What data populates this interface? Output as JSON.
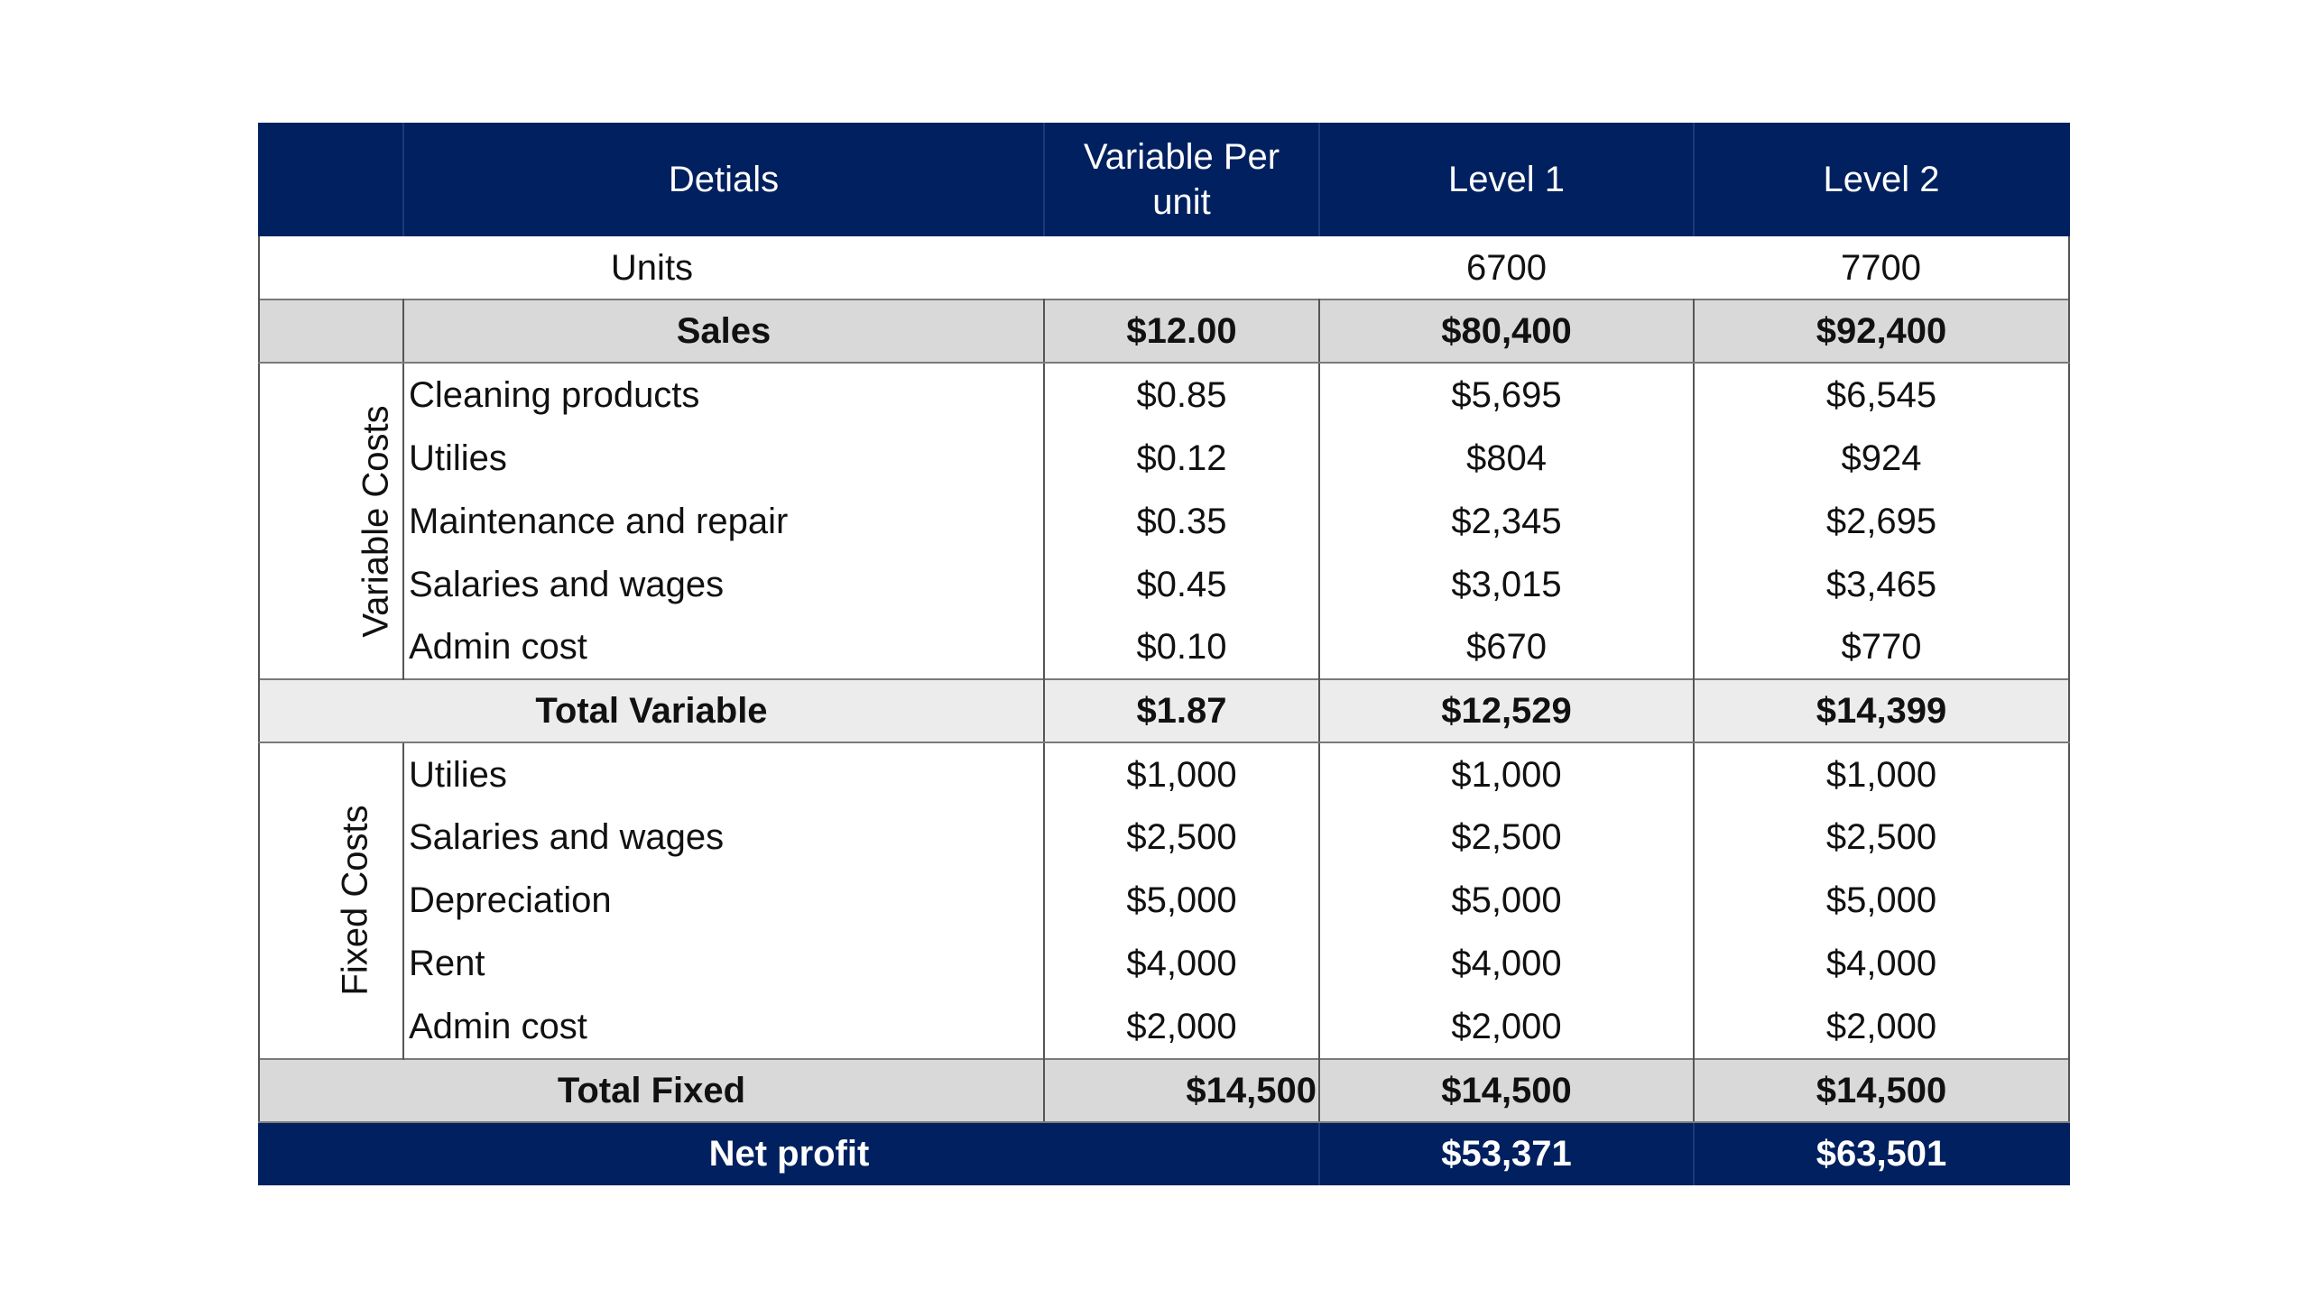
{
  "header": {
    "blank": "",
    "details": "Detials",
    "variable_per_unit": "Variable Per unit",
    "level1": "Level 1",
    "level2": "Level 2"
  },
  "units": {
    "label": "Units",
    "level1": "6700",
    "level2": "7700"
  },
  "sales": {
    "label": "Sales",
    "per_unit": "$12.00",
    "level1": "$80,400",
    "level2": "$92,400"
  },
  "variable_costs": {
    "group_label": "Variable Costs",
    "rows": [
      {
        "label": "Cleaning products",
        "per_unit": "$0.85",
        "level1": "$5,695",
        "level2": "$6,545"
      },
      {
        "label": "Utilies",
        "per_unit": "$0.12",
        "level1": "$804",
        "level2": "$924"
      },
      {
        "label": "Maintenance and repair",
        "per_unit": "$0.35",
        "level1": "$2,345",
        "level2": "$2,695"
      },
      {
        "label": "Salaries and wages",
        "per_unit": "$0.45",
        "level1": "$3,015",
        "level2": "$3,465"
      },
      {
        "label": "Admin cost",
        "per_unit": "$0.10",
        "level1": "$670",
        "level2": "$770"
      }
    ]
  },
  "total_variable": {
    "label": "Total Variable",
    "per_unit": "$1.87",
    "level1": "$12,529",
    "level2": "$14,399"
  },
  "fixed_costs": {
    "group_label": "Fixed Costs",
    "rows": [
      {
        "label": "Utilies",
        "per_unit": "$1,000",
        "level1": "$1,000",
        "level2": "$1,000"
      },
      {
        "label": "Salaries and wages",
        "per_unit": "$2,500",
        "level1": "$2,500",
        "level2": "$2,500"
      },
      {
        "label": "Depreciation",
        "per_unit": "$5,000",
        "level1": "$5,000",
        "level2": "$5,000"
      },
      {
        "label": "Rent",
        "per_unit": "$4,000",
        "level1": "$4,000",
        "level2": "$4,000"
      },
      {
        "label": "Admin cost",
        "per_unit": "$2,000",
        "level1": "$2,000",
        "level2": "$2,000"
      }
    ]
  },
  "total_fixed": {
    "label": "Total Fixed",
    "per_unit": "$14,500",
    "level1": "$14,500",
    "level2": "$14,500"
  },
  "net_profit": {
    "label": "Net profit",
    "level1": "$53,371",
    "level2": "$63,501"
  },
  "colors": {
    "header_bg": "#00205f",
    "shade_bg": "#d9d9d9"
  }
}
